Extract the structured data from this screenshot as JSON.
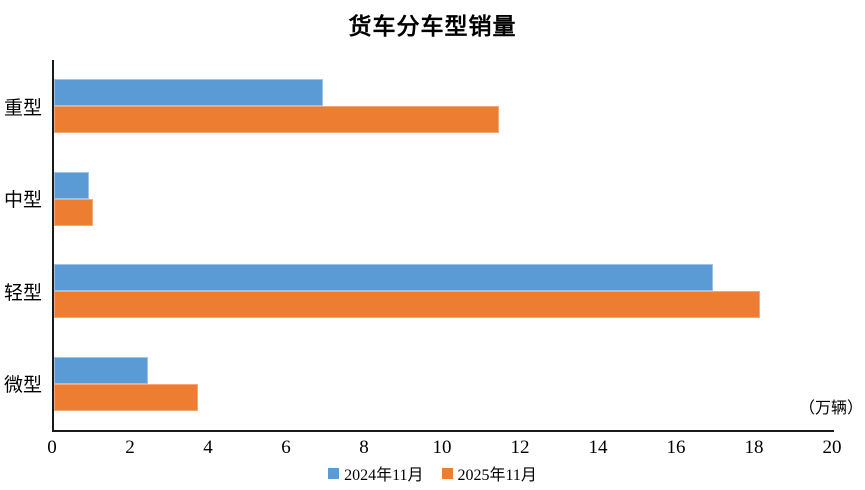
{
  "chart_data": {
    "type": "bar",
    "orientation": "horizontal",
    "title": "货车分车型销量",
    "unit_label": "（万辆）",
    "categories": [
      "重型",
      "中型",
      "轻型",
      "微型"
    ],
    "series": [
      {
        "name": "2024年11月",
        "color": "#5B9BD5",
        "border_color": "#9DC3E8",
        "values": [
          6.9,
          0.9,
          16.9,
          2.4
        ]
      },
      {
        "name": "2025年11月",
        "color": "#ED7D31",
        "border_color": "#F4A877",
        "values": [
          11.4,
          1.0,
          18.1,
          3.7
        ]
      }
    ],
    "xlim": [
      0,
      20
    ],
    "xticks": [
      0,
      2,
      4,
      6,
      8,
      10,
      12,
      14,
      16,
      18,
      20
    ],
    "grid": false,
    "legend_position": "bottom",
    "axis_color": "#1a1a1a",
    "text_color": "#000000",
    "background": "#ffffff"
  }
}
